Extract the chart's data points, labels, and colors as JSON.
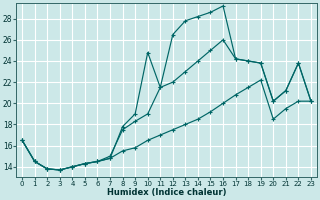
{
  "xlabel": "Humidex (Indice chaleur)",
  "bg_color": "#cce8e8",
  "grid_color": "#ffffff",
  "line_color": "#006666",
  "xlim": [
    -0.5,
    23.5
  ],
  "ylim": [
    13.0,
    29.5
  ],
  "xticks": [
    0,
    1,
    2,
    3,
    4,
    5,
    6,
    7,
    8,
    9,
    10,
    11,
    12,
    13,
    14,
    15,
    16,
    17,
    18,
    19,
    20,
    21,
    22,
    23
  ],
  "yticks": [
    14,
    16,
    18,
    20,
    22,
    24,
    26,
    28
  ],
  "line1_x": [
    0,
    1,
    2,
    3,
    4,
    5,
    6,
    7,
    8,
    9,
    10,
    11,
    12,
    13,
    14,
    15,
    16,
    17,
    18,
    19,
    20,
    21,
    22,
    23
  ],
  "line1_y": [
    16.5,
    14.5,
    13.8,
    13.7,
    14.0,
    14.3,
    14.5,
    14.8,
    17.8,
    19.0,
    24.8,
    21.5,
    26.5,
    27.8,
    28.2,
    28.6,
    29.2,
    24.2,
    24.0,
    23.8,
    20.2,
    21.2,
    23.8,
    20.2
  ],
  "line2_x": [
    0,
    1,
    2,
    3,
    4,
    5,
    6,
    7,
    8,
    9,
    10,
    11,
    12,
    13,
    14,
    15,
    16,
    17,
    18,
    19,
    20,
    21,
    22,
    23
  ],
  "line2_y": [
    16.5,
    14.5,
    13.8,
    13.7,
    14.0,
    14.3,
    14.5,
    15.0,
    17.5,
    18.3,
    19.0,
    21.5,
    22.0,
    23.0,
    24.0,
    25.0,
    26.0,
    24.2,
    24.0,
    23.8,
    20.2,
    21.2,
    23.8,
    20.2
  ],
  "line3_x": [
    0,
    1,
    2,
    3,
    4,
    5,
    6,
    7,
    8,
    9,
    10,
    11,
    12,
    13,
    14,
    15,
    16,
    17,
    18,
    19,
    20,
    21,
    22,
    23
  ],
  "line3_y": [
    16.5,
    14.5,
    13.8,
    13.7,
    14.0,
    14.3,
    14.5,
    14.8,
    15.5,
    15.8,
    16.5,
    17.0,
    17.5,
    18.0,
    18.5,
    19.2,
    20.0,
    20.8,
    21.5,
    22.2,
    18.5,
    19.5,
    20.2,
    20.2
  ]
}
